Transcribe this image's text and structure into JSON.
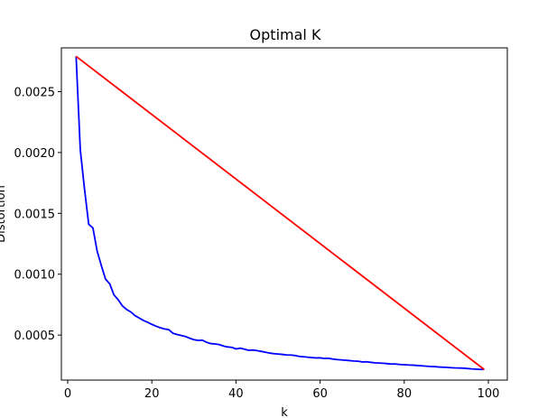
{
  "chart_data": {
    "type": "line",
    "title": "Optimal K",
    "xlabel": "k",
    "ylabel": "Distortion",
    "xlim": [
      -1.5,
      104.5
    ],
    "ylim": [
      0.00013,
      0.00286
    ],
    "xticks": [
      0,
      20,
      40,
      60,
      80,
      100
    ],
    "xtick_labels": [
      "0",
      "20",
      "40",
      "60",
      "80",
      "100"
    ],
    "yticks": [
      0.0005,
      0.001,
      0.0015,
      0.002,
      0.0025
    ],
    "ytick_labels": [
      "0.0005",
      "0.0010",
      "0.0015",
      "0.0020",
      "0.0025"
    ],
    "grid": false,
    "series": [
      {
        "color": "#0000ff",
        "x": [
          2,
          3,
          4,
          5,
          6,
          7,
          8,
          9,
          10,
          11,
          12,
          13,
          14,
          15,
          16,
          17,
          18,
          19,
          20,
          21,
          22,
          23,
          24,
          25,
          26,
          27,
          28,
          29,
          30,
          31,
          32,
          33,
          34,
          35,
          36,
          37,
          38,
          39,
          40,
          41,
          42,
          43,
          44,
          45,
          46,
          47,
          48,
          49,
          50,
          51,
          52,
          53,
          54,
          55,
          56,
          57,
          58,
          59,
          60,
          61,
          62,
          63,
          64,
          65,
          66,
          67,
          68,
          69,
          70,
          71,
          72,
          73,
          74,
          75,
          76,
          77,
          78,
          79,
          80,
          81,
          82,
          83,
          84,
          85,
          86,
          87,
          88,
          89,
          90,
          91,
          92,
          93,
          94,
          95,
          96,
          97,
          98,
          99
        ],
        "y": [
          0.00279,
          0.00202,
          0.0017,
          0.00141,
          0.00138,
          0.00119,
          0.00107,
          0.00096,
          0.00092,
          0.00083,
          0.00079,
          0.00074,
          0.00071,
          0.00069,
          0.00066,
          0.00064,
          0.00062,
          0.000605,
          0.000588,
          0.000573,
          0.00056,
          0.00055,
          0.000545,
          0.000515,
          0.000505,
          0.000496,
          0.000488,
          0.000474,
          0.000462,
          0.000456,
          0.000458,
          0.000441,
          0.00043,
          0.000427,
          0.000422,
          0.00041,
          0.000402,
          0.000399,
          0.000386,
          0.000392,
          0.000384,
          0.000375,
          0.000377,
          0.000372,
          0.000366,
          0.000359,
          0.000352,
          0.000347,
          0.000344,
          0.000341,
          0.000337,
          0.000336,
          0.000332,
          0.000325,
          0.000322,
          0.000318,
          0.000315,
          0.000312,
          0.000313,
          0.000308,
          0.000309,
          0.000303,
          0.000299,
          0.000296,
          0.000293,
          0.00029,
          0.000287,
          0.000285,
          0.000279,
          0.00028,
          0.000276,
          0.000272,
          0.00027,
          0.000268,
          0.000265,
          0.000262,
          0.000262,
          0.000258,
          0.000256,
          0.000254,
          0.000253,
          0.00025,
          0.000248,
          0.000245,
          0.000242,
          0.000241,
          0.000238,
          0.000236,
          0.000235,
          0.000232,
          0.00023,
          0.000229,
          0.000228,
          0.000225,
          0.000222,
          0.00022,
          0.000218,
          0.000217
        ]
      },
      {
        "color": "#ff0000",
        "x": [
          2,
          99
        ],
        "y": [
          0.00279,
          0.000217
        ]
      }
    ]
  }
}
